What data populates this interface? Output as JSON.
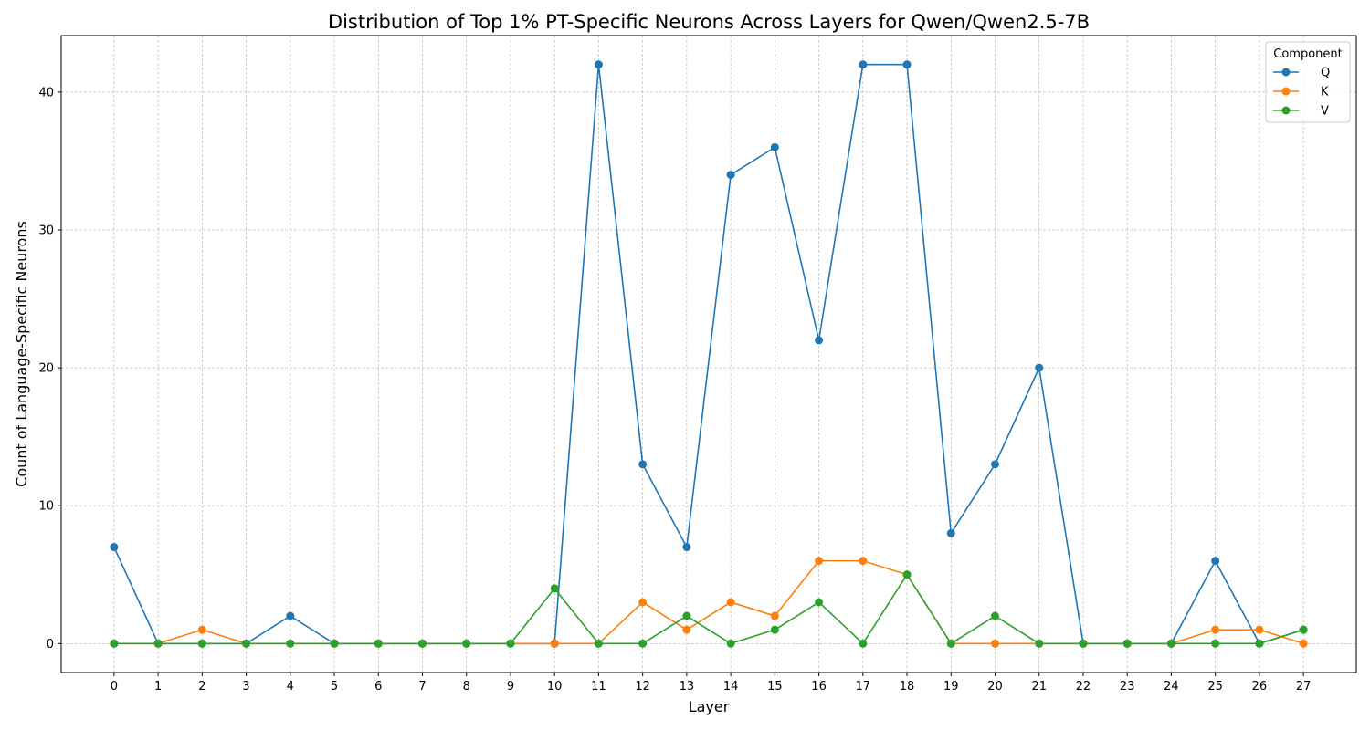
{
  "chart_data": {
    "type": "line",
    "title": "Distribution of Top 1% PT-Specific Neurons Across Layers for Qwen/Qwen2.5-7B",
    "xlabel": "Layer",
    "ylabel": "Count of Language-Specific Neurons",
    "x": [
      0,
      1,
      2,
      3,
      4,
      5,
      6,
      7,
      8,
      9,
      10,
      11,
      12,
      13,
      14,
      15,
      16,
      17,
      18,
      19,
      20,
      21,
      22,
      23,
      24,
      25,
      26,
      27
    ],
    "x_tick_labels": [
      "0",
      "1",
      "2",
      "3",
      "4",
      "5",
      "6",
      "7",
      "8",
      "9",
      "10",
      "11",
      "12",
      "13",
      "14",
      "15",
      "16",
      "17",
      "18",
      "19",
      "20",
      "21",
      "22",
      "23",
      "24",
      "25",
      "26",
      "27"
    ],
    "y_ticks": [
      0,
      10,
      20,
      30,
      40
    ],
    "y_tick_labels": [
      "0",
      "10",
      "20",
      "30",
      "40"
    ],
    "xlim": [
      -1.2,
      28.2
    ],
    "ylim": [
      -2.1,
      44.1
    ],
    "grid": true,
    "legend_title": "Component",
    "legend_position": "top-right",
    "series": [
      {
        "name": "Q",
        "color": "#1f77b4",
        "values": [
          7,
          0,
          0,
          0,
          2,
          0,
          0,
          0,
          0,
          0,
          0,
          42,
          13,
          7,
          34,
          36,
          22,
          42,
          42,
          8,
          13,
          20,
          0,
          0,
          0,
          6,
          0,
          1
        ]
      },
      {
        "name": "K",
        "color": "#ff7f0e",
        "values": [
          0,
          0,
          1,
          0,
          0,
          0,
          0,
          0,
          0,
          0,
          0,
          0,
          3,
          1,
          3,
          2,
          6,
          6,
          5,
          0,
          0,
          0,
          0,
          0,
          0,
          1,
          1,
          0
        ]
      },
      {
        "name": "V",
        "color": "#2ca02c",
        "values": [
          0,
          0,
          0,
          0,
          0,
          0,
          0,
          0,
          0,
          0,
          4,
          0,
          0,
          2,
          0,
          1,
          3,
          0,
          5,
          0,
          2,
          0,
          0,
          0,
          0,
          0,
          0,
          1
        ]
      }
    ]
  }
}
